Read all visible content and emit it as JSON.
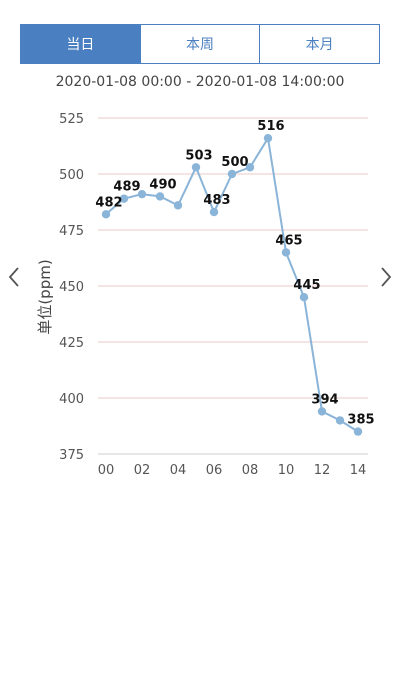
{
  "tabs": [
    {
      "label": "当日",
      "active": true
    },
    {
      "label": "本周",
      "active": false
    },
    {
      "label": "本月",
      "active": false
    }
  ],
  "date_range": "2020-01-08 00:00 - 2020-01-08 14:00:00",
  "nav": {
    "prev_icon": "chevron-left-icon",
    "next_icon": "chevron-right-icon"
  },
  "colors": {
    "accent": "#4a7fc1",
    "series": "#8ab4d8",
    "grid": "#e8c8c8"
  },
  "chart_data": {
    "type": "line",
    "title": "",
    "xlabel": "",
    "ylabel": "单位(ppm)",
    "xlim": [
      0,
      14
    ],
    "ylim": [
      375,
      525
    ],
    "x_ticks": [
      "00",
      "02",
      "04",
      "06",
      "08",
      "10",
      "12",
      "14"
    ],
    "y_ticks": [
      375,
      400,
      425,
      450,
      475,
      500,
      525
    ],
    "grid": true,
    "legend": "none",
    "series": [
      {
        "x": [
          0,
          1,
          2,
          3,
          4,
          5,
          6,
          7,
          8,
          9,
          10,
          11,
          12,
          13,
          14
        ],
        "values": [
          482,
          489,
          491,
          490,
          486,
          503,
          483,
          500,
          503,
          516,
          465,
          445,
          394,
          390,
          385
        ]
      }
    ],
    "data_labels": [
      {
        "index": 0,
        "text": "482"
      },
      {
        "index": 1,
        "text": "489"
      },
      {
        "index": 3,
        "text": "490"
      },
      {
        "index": 5,
        "text": "503"
      },
      {
        "index": 6,
        "text": "483"
      },
      {
        "index": 7,
        "text": "500"
      },
      {
        "index": 9,
        "text": "516"
      },
      {
        "index": 10,
        "text": "465"
      },
      {
        "index": 11,
        "text": "445"
      },
      {
        "index": 12,
        "text": "394"
      },
      {
        "index": 14,
        "text": "385"
      }
    ]
  }
}
